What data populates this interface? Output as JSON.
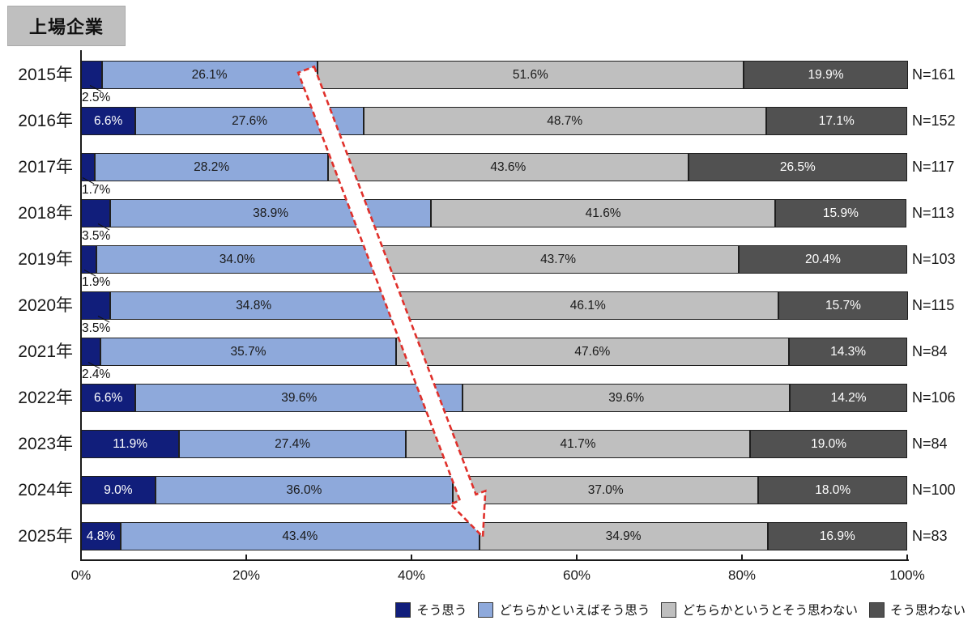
{
  "title_badge": "上場企業",
  "colors": {
    "agree": "#111E7B",
    "somewhat_agree": "#8EA9DB",
    "somewhat_disagree": "#BFBFBF",
    "disagree": "#515151",
    "segment_border": "#1F1F1F",
    "axis": "#1A1A1A",
    "arrow_red": "#E0302B",
    "badge_bg": "#BFBFBF"
  },
  "legend": {
    "items": [
      {
        "label": "そう思う",
        "color": "#111E7B"
      },
      {
        "label": "どちらかといえばそう思う",
        "color": "#8EA9DB"
      },
      {
        "label": "どちらかというとそう思わない",
        "color": "#BFBFBF"
      },
      {
        "label": "そう思わない",
        "color": "#515151"
      }
    ]
  },
  "chart_data": {
    "type": "bar",
    "orientation": "horizontal",
    "stacked": true,
    "title": "上場企業",
    "legend_position": "bottom-right",
    "x_axis": {
      "range": [
        0,
        100
      ],
      "tick_values": [
        0,
        20,
        40,
        60,
        80,
        100
      ],
      "tick_labels": [
        "0%",
        "20%",
        "40%",
        "60%",
        "80%",
        "100%"
      ]
    },
    "series_labels": [
      "そう思う",
      "どちらかといえばそう思う",
      "どちらかというとそう思わない",
      "そう思わない"
    ],
    "rows": [
      {
        "year": "2015年",
        "n": "N=161",
        "values": [
          2.5,
          26.1,
          51.6,
          19.9
        ],
        "labels": [
          "2.5%",
          "26.1%",
          "51.6%",
          "19.9%"
        ],
        "first_label_below": true
      },
      {
        "year": "2016年",
        "n": "N=152",
        "values": [
          6.6,
          27.6,
          48.7,
          17.1
        ],
        "labels": [
          "6.6%",
          "27.6%",
          "48.7%",
          "17.1%"
        ],
        "first_label_below": false
      },
      {
        "year": "2017年",
        "n": "N=117",
        "values": [
          1.7,
          28.2,
          43.6,
          26.5
        ],
        "labels": [
          "1.7%",
          "28.2%",
          "43.6%",
          "26.5%"
        ],
        "first_label_below": true
      },
      {
        "year": "2018年",
        "n": "N=113",
        "values": [
          3.5,
          38.9,
          41.6,
          15.9
        ],
        "labels": [
          "3.5%",
          "38.9%",
          "41.6%",
          "15.9%"
        ],
        "first_label_below": true
      },
      {
        "year": "2019年",
        "n": "N=103",
        "values": [
          1.9,
          34.0,
          43.7,
          20.4
        ],
        "labels": [
          "1.9%",
          "34.0%",
          "43.7%",
          "20.4%"
        ],
        "first_label_below": true
      },
      {
        "year": "2020年",
        "n": "N=115",
        "values": [
          3.5,
          34.8,
          46.1,
          15.7
        ],
        "labels": [
          "3.5%",
          "34.8%",
          "46.1%",
          "15.7%"
        ],
        "first_label_below": true
      },
      {
        "year": "2021年",
        "n": "N=84",
        "values": [
          2.4,
          35.7,
          47.6,
          14.3
        ],
        "labels": [
          "2.4%",
          "35.7%",
          "47.6%",
          "14.3%"
        ],
        "first_label_below": true
      },
      {
        "year": "2022年",
        "n": "N=106",
        "values": [
          6.6,
          39.6,
          39.6,
          14.2
        ],
        "labels": [
          "6.6%",
          "39.6%",
          "39.6%",
          "14.2%"
        ],
        "first_label_below": false
      },
      {
        "year": "2023年",
        "n": "N=84",
        "values": [
          11.9,
          27.4,
          41.7,
          19.0
        ],
        "labels": [
          "11.9%",
          "27.4%",
          "41.7%",
          "19.0%"
        ],
        "first_label_below": false
      },
      {
        "year": "2024年",
        "n": "N=100",
        "values": [
          9.0,
          36.0,
          37.0,
          18.0
        ],
        "labels": [
          "9.0%",
          "36.0%",
          "37.0%",
          "18.0%"
        ],
        "first_label_below": false
      },
      {
        "year": "2025年",
        "n": "N=83",
        "values": [
          4.8,
          43.4,
          34.9,
          16.9
        ],
        "labels": [
          "4.8%",
          "43.4%",
          "34.9%",
          "16.9%"
        ],
        "first_label_below": false
      }
    ],
    "annotations": [
      {
        "type": "arrow",
        "style": "white-fill-red-dashed",
        "from_year": "2015年",
        "to_year": "2025年",
        "meaning": "boundary of positive answers trend"
      }
    ]
  }
}
